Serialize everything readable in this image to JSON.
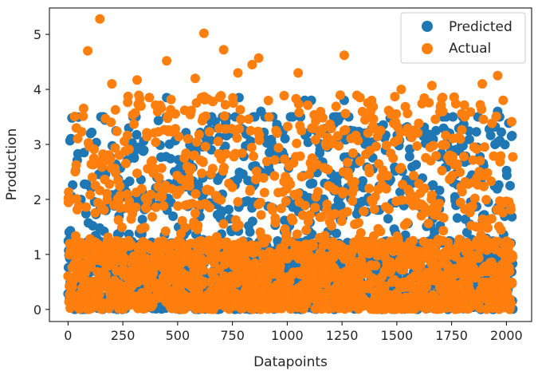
{
  "chart_data": {
    "type": "scatter",
    "xlabel": "Datapoints",
    "ylabel": "Production",
    "xlim": [
      -85,
      2115
    ],
    "ylim": [
      -0.22,
      5.48
    ],
    "xticks": [
      0,
      250,
      500,
      750,
      1000,
      1250,
      1500,
      1750,
      2000
    ],
    "yticks": [
      0,
      1,
      2,
      3,
      4,
      5
    ],
    "grid": false,
    "legend_position": "top-right",
    "n_points": 2030,
    "series": [
      {
        "name": "Predicted",
        "color": "#1f77b4",
        "description_stats": {
          "min": 0.0,
          "max": 3.9,
          "bulk_range": [
            0.0,
            1.2
          ]
        },
        "notable_points": [
          {
            "x": 450,
            "y": 3.85
          },
          {
            "x": 780,
            "y": 3.85
          },
          {
            "x": 1080,
            "y": 3.8
          },
          {
            "x": 1110,
            "y": 3.8
          },
          {
            "x": 1260,
            "y": 3.8
          },
          {
            "x": 1960,
            "y": 3.6
          },
          {
            "x": 880,
            "y": 3.6
          },
          {
            "x": 1820,
            "y": 1.4
          }
        ]
      },
      {
        "name": "Actual",
        "color": "#ff7f0e",
        "description_stats": {
          "min": 0.0,
          "max": 5.3,
          "bulk_range": [
            0.0,
            1.3
          ]
        },
        "notable_points": [
          {
            "x": 145,
            "y": 5.28
          },
          {
            "x": 620,
            "y": 5.02
          },
          {
            "x": 90,
            "y": 4.7
          },
          {
            "x": 710,
            "y": 4.72
          },
          {
            "x": 1260,
            "y": 4.62
          },
          {
            "x": 870,
            "y": 4.57
          },
          {
            "x": 840,
            "y": 4.45
          },
          {
            "x": 450,
            "y": 4.52
          },
          {
            "x": 1960,
            "y": 4.25
          },
          {
            "x": 1050,
            "y": 4.3
          },
          {
            "x": 580,
            "y": 4.2
          },
          {
            "x": 315,
            "y": 4.17
          },
          {
            "x": 1890,
            "y": 4.1
          },
          {
            "x": 200,
            "y": 4.1
          },
          {
            "x": 775,
            "y": 4.3
          },
          {
            "x": 1660,
            "y": 4.07
          },
          {
            "x": 1520,
            "y": 4.0
          },
          {
            "x": 1985,
            "y": 3.8
          },
          {
            "x": 1710,
            "y": 3.6
          },
          {
            "x": 1810,
            "y": 3.5
          }
        ]
      }
    ]
  }
}
